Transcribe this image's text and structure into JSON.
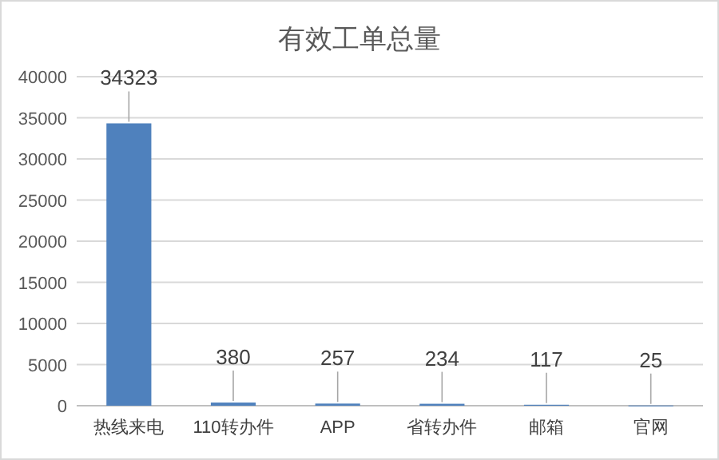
{
  "chart_data": {
    "type": "bar",
    "title": "有效工单总量",
    "categories": [
      "热线来电",
      "110转办件",
      "APP",
      "省转办件",
      "邮箱",
      "官网"
    ],
    "values": [
      34323,
      380,
      257,
      234,
      117,
      25
    ],
    "color": "#4f81bd",
    "ylim": [
      0,
      40000
    ],
    "yticks": [
      0,
      5000,
      10000,
      15000,
      20000,
      25000,
      30000,
      35000,
      40000
    ],
    "grid": "y",
    "data_labels": true
  }
}
